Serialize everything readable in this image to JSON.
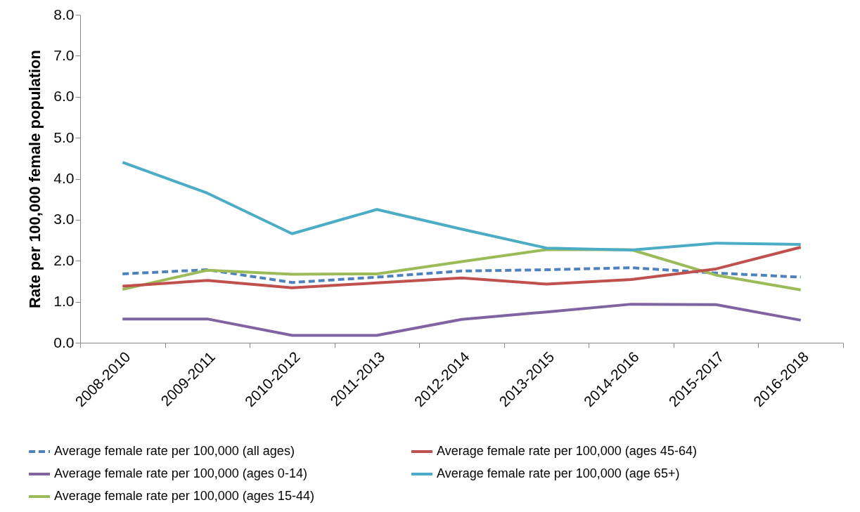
{
  "chart_data": {
    "type": "line",
    "ylabel": "Rate per 100,000 female population",
    "categories": [
      "2008-2010",
      "2009-2011",
      "2010-2012",
      "2011-2013",
      "2012-2014",
      "2013-2015",
      "2014-2016",
      "2015-2017",
      "2016-2018"
    ],
    "series": [
      {
        "name": "Average female rate per 100,000 (all ages)",
        "color": "#4f81bd",
        "line_style": "dashed",
        "values": [
          1.68,
          1.78,
          1.47,
          1.6,
          1.75,
          1.78,
          1.83,
          1.7,
          1.6
        ]
      },
      {
        "name": "Average female rate per 100,000 (ages 0-14)",
        "color": "#8064a2",
        "line_style": "solid",
        "values": [
          0.58,
          0.58,
          0.18,
          0.18,
          0.57,
          0.75,
          0.94,
          0.93,
          0.55
        ]
      },
      {
        "name": "Average female rate per 100,000 (ages 15-44)",
        "color": "#9bbb59",
        "line_style": "solid",
        "values": [
          1.3,
          1.77,
          1.67,
          1.68,
          1.98,
          2.27,
          2.27,
          1.65,
          1.29
        ]
      },
      {
        "name": "Average female rate per 100,000 (ages 45-64)",
        "color": "#c0504d",
        "line_style": "solid",
        "values": [
          1.38,
          1.52,
          1.34,
          1.46,
          1.58,
          1.43,
          1.54,
          1.8,
          2.33
        ]
      },
      {
        "name": "Average female rate per 100,000 (age 65+)",
        "color": "#4bacc6",
        "line_style": "solid",
        "values": [
          4.4,
          3.65,
          2.66,
          3.25,
          2.77,
          2.31,
          2.26,
          2.43,
          2.4
        ]
      }
    ],
    "ylim": [
      0,
      8
    ],
    "yticks": [
      {
        "value": 0,
        "label": "0.0"
      },
      {
        "value": 1,
        "label": "1.0"
      },
      {
        "value": 2,
        "label": "2.0"
      },
      {
        "value": 3,
        "label": "3.0"
      },
      {
        "value": 4,
        "label": "4.0"
      },
      {
        "value": 5,
        "label": "5.0"
      },
      {
        "value": 6,
        "label": "6.0"
      },
      {
        "value": 7,
        "label": "7.0"
      },
      {
        "value": 8,
        "label": "8.0"
      }
    ],
    "grid": false,
    "legend": "bottom",
    "marker": "none"
  }
}
